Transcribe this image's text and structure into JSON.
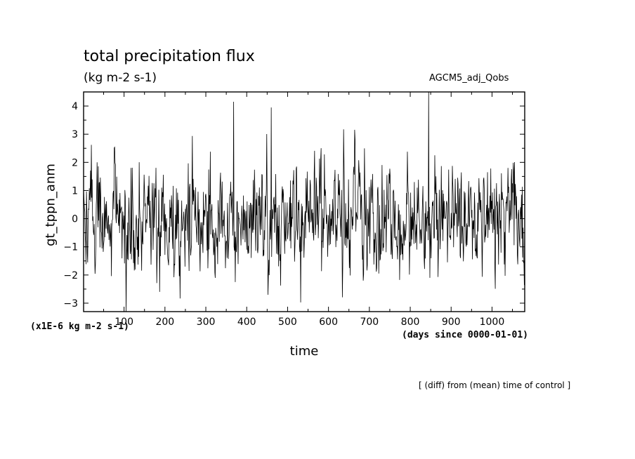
{
  "chart_data": {
    "type": "line",
    "title": "total precipitation flux",
    "units": "(kg m-2 s-1)",
    "dataset": "AGCM5_adj_Qobs",
    "xlabel": "time",
    "x_units": "(days since 0000-01-01)",
    "ylabel": "gt_tppn_anm",
    "y_scale_note": "(x1E-6 kg m-2 s-1)",
    "footnote": "[ (diff) from (mean) time of control ]",
    "xlim": [
      1,
      1080
    ],
    "ylim": [
      -3.3,
      4.5
    ],
    "x_ticks": [
      100,
      200,
      300,
      400,
      500,
      600,
      700,
      800,
      900,
      1000
    ],
    "y_ticks": [
      -3,
      -2,
      -1,
      0,
      1,
      2,
      3,
      4
    ],
    "x_tick_labels": [
      "100",
      "200",
      "300",
      "400",
      "500",
      "600",
      "700",
      "800",
      "900",
      "1000"
    ],
    "y_tick_labels": [
      "−3",
      "−2",
      "−1",
      "0",
      "1",
      "2",
      "3",
      "4"
    ],
    "grid": false,
    "legend": "none",
    "line_color": "#000000",
    "series": [
      {
        "n_points": 1080,
        "x_start": 1,
        "x_step": 1,
        "std": 1.0,
        "anchors": [
          {
            "x": 105,
            "y": -3.3
          },
          {
            "x": 187,
            "y": -2.6
          },
          {
            "x": 368,
            "y": 4.15
          },
          {
            "x": 372,
            "y": -2.25
          },
          {
            "x": 460,
            "y": 3.95
          },
          {
            "x": 845,
            "y": 4.5
          },
          {
            "x": 848,
            "y": -2.1
          }
        ]
      }
    ]
  }
}
